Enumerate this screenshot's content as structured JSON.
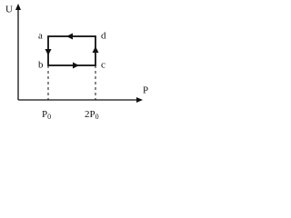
{
  "axes": {
    "y_label": "U",
    "x_label": "P"
  },
  "points": {
    "a": "a",
    "b": "b",
    "c": "c",
    "d": "d"
  },
  "x_ticks": [
    {
      "main": "P",
      "sub": "0"
    },
    {
      "main": "2P",
      "sub": "0"
    }
  ]
}
